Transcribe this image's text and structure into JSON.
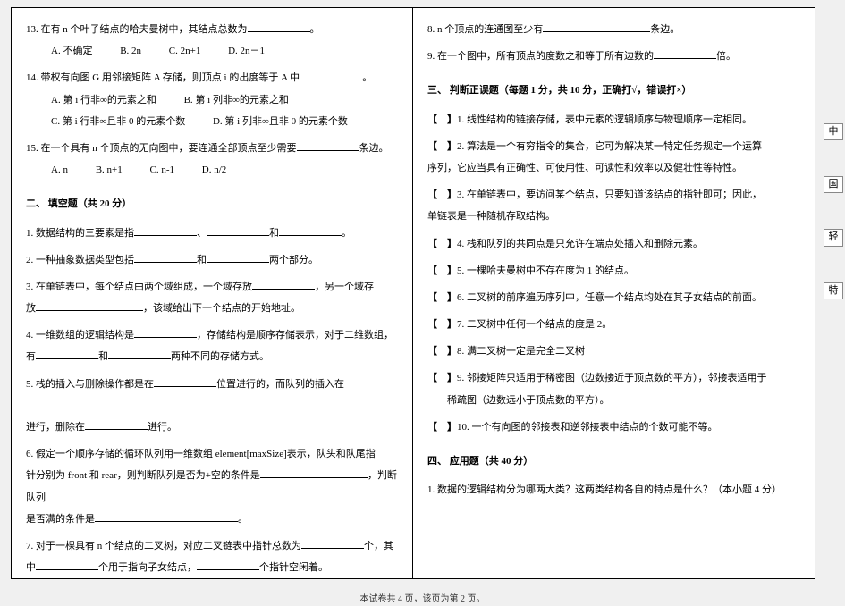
{
  "left": {
    "q13": {
      "text": "13.  在有 n 个叶子结点的哈夫曼树中，其结点总数为",
      "tail": "。",
      "opts": [
        "A.  不确定",
        "B.  2n",
        "C.  2n+1",
        "D.  2n－1"
      ]
    },
    "q14": {
      "text": "14.  带权有向图 G 用邻接矩阵 A 存储，则顶点 i 的出度等于 A 中",
      "tail": "。",
      "optA": "A.  第 i 行非∞的元素之和",
      "optB": "B.  第 i 列非∞的元素之和",
      "optC": "C.  第 i 行非∞且非 0 的元素个数",
      "optD": "D.  第 i 列非∞且非 0 的元素个数"
    },
    "q15": {
      "text": "15.  在一个具有 n 个顶点的无向图中，要连通全部顶点至少需要",
      "tail": "条边。",
      "opts": [
        "A.  n",
        "B.  n+1",
        "C.  n-1",
        "D.  n/2"
      ]
    },
    "sec2": "二、  填空题（共 20 分）",
    "f1a": "1.  数据结构的三要素是指",
    "f1b": "、",
    "f1c": "和",
    "f1d": "。",
    "f2a": "2.  一种抽象数据类型包括",
    "f2b": "和",
    "f2c": "两个部分。",
    "f3a": "3.  在单链表中，每个结点由两个域组成，一个域存放",
    "f3b": "，另一个域存",
    "f3c": "放",
    "f3d": "，该域给出下一个结点的开始地址。",
    "f4a": "4.  一维数组的逻辑结构是",
    "f4b": "，存储结构是顺序存储表示，对于二维数组，",
    "f4c": "有",
    "f4d": "和",
    "f4e": "两种不同的存储方式。",
    "f5a": "5.  栈的插入与删除操作都是在",
    "f5b": "位置进行的，而队列的插入在",
    "f5c": "进行，删除在",
    "f5d": "进行。",
    "f6a": "6.  假定一个顺序存储的循环队列用一维数组 element[maxSize]表示，队头和队尾指",
    "f6b": "针分别为 front 和 rear，则判断队列是否为+空的条件是",
    "f6c": "，判断队列",
    "f6d": "是否满的条件是",
    "f6e": "。",
    "f7a": "7.  对于一棵具有 n 个结点的二叉树，对应二叉链表中指针总数为",
    "f7b": "个，其",
    "f7c": "中",
    "f7d": "个用于指向子女结点，",
    "f7e": "个指针空闲着。"
  },
  "right": {
    "r8a": "8.  n 个顶点的连通图至少有",
    "r8b": "条边。",
    "r9a": "9.  在一个图中，所有顶点的度数之和等于所有边数的",
    "r9b": "倍。",
    "sec3": "三、  判断正误题（每题 1 分，共 10 分，正确打√，错误打×）",
    "t1": "1.  线性结构的链接存储，表中元素的逻辑顺序与物理顺序一定相同。",
    "t2a": "2.  算法是一个有穷指令的集合，它可为解决某一特定任务规定一个运算",
    "t2b": "序列，它应当具有正确性、可使用性、可读性和效率以及健壮性等特性。",
    "t3a": "3.  在单链表中，要访问某个结点，只要知道该结点的指针即可；因此，",
    "t3b": "单链表是一种随机存取结构。",
    "t4": "4.  栈和队列的共同点是只允许在端点处插入和删除元素。",
    "t5": "5.  一棵哈夫曼树中不存在度为 1 的结点。",
    "t6": "6.  二叉树的前序遍历序列中，任意一个结点均处在其子女结点的前面。",
    "t7": "7.  二叉树中任何一个结点的度是 2。",
    "t8": "8.  满二叉树一定是完全二叉树",
    "t9a": "9.  邻接矩阵只适用于稀密图（边数接近于顶点数的平方），邻接表适用于",
    "t9b": "稀疏图（边数远小于顶点数的平方）。",
    "t10": "10.  一个有向图的邻接表和逆邻接表中结点的个数可能不等。",
    "sec4": "四、 应用题（共 40 分）",
    "app1": "1.  数据的逻辑结构分为哪两大类？这两类结构各自的特点是什么？（本小题 4 分）"
  },
  "footer": "本试卷共 4 页，该页为第 2 页。",
  "sideTabs": [
    "中",
    "国",
    "轻",
    "特"
  ]
}
